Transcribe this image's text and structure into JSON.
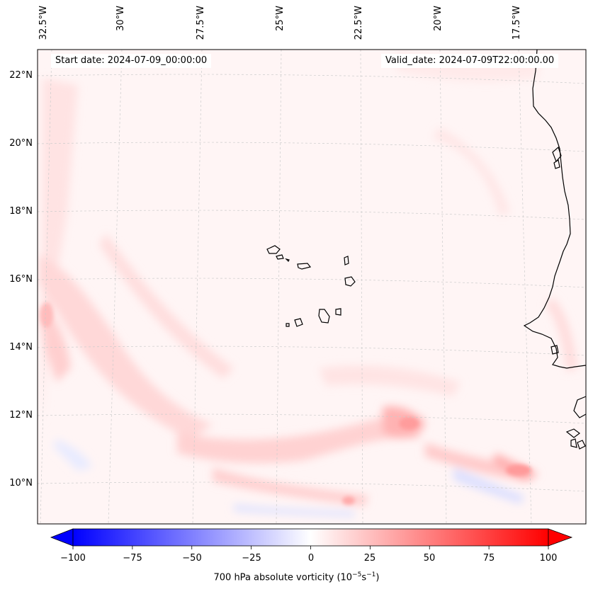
{
  "map": {
    "start_date_label": "Start date: 2024-07-09_00:00:00",
    "valid_date_label": "Valid_date: 2024-07-09T22:00:00.00",
    "lon_labels": [
      "32.5°W",
      "30°W",
      "27.5°W",
      "25°W",
      "22.5°W",
      "20°W",
      "17.5°W"
    ],
    "lat_labels": [
      "22°N",
      "20°N",
      "18°N",
      "16°N",
      "14°N",
      "12°N",
      "10°N"
    ],
    "field": "700 hPa absolute vorticity",
    "colors": {
      "negative": "#0000ff",
      "positive": "#ff0000",
      "neutral": "#ffffff",
      "coast": "#000000"
    }
  },
  "colorbar": {
    "ticks": [
      "−100",
      "−75",
      "−50",
      "−25",
      "0",
      "25",
      "50",
      "75",
      "100"
    ],
    "label_prefix": "700 hPa absolute vorticity (10",
    "label_exp1": "−5",
    "label_mid": "s",
    "label_exp2": "−1",
    "label_suffix": ")",
    "range": [
      -100,
      100
    ]
  }
}
